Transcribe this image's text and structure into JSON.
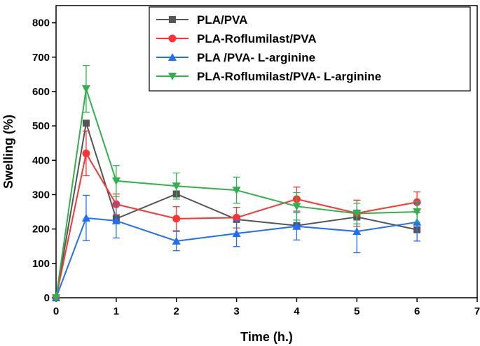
{
  "chart_data": {
    "type": "line",
    "title": "",
    "xlabel": "Time (h.)",
    "ylabel": "Swelling (%)",
    "xlim": [
      0,
      7
    ],
    "ylim": [
      0,
      850
    ],
    "xticks": [
      0,
      1,
      2,
      3,
      4,
      5,
      6,
      7
    ],
    "yticks": [
      0,
      100,
      200,
      300,
      400,
      500,
      600,
      700,
      800
    ],
    "xtick_labels": [
      "0",
      "1",
      "2",
      "3",
      "4",
      "5",
      "6",
      "7"
    ],
    "ytick_labels": [
      "0",
      "100",
      "200",
      "300",
      "400",
      "500",
      "600",
      "700",
      "800"
    ],
    "grid": false,
    "legend_position": "top-right",
    "x": [
      0,
      0.5,
      1,
      2,
      3,
      4,
      5,
      6
    ],
    "series": [
      {
        "name": "PLA/PVA",
        "color": "#555555",
        "marker": "square",
        "values": [
          0,
          508,
          230,
          302,
          228,
          210,
          235,
          198
        ],
        "errors": [
          0,
          0,
          0,
          0,
          0,
          0,
          0,
          0
        ]
      },
      {
        "name": "PLA-Roflumilast/PVA",
        "color": "#ff3333",
        "marker": "circle",
        "values": [
          0,
          420,
          272,
          230,
          233,
          287,
          246,
          278
        ],
        "errors": [
          0,
          65,
          30,
          35,
          30,
          35,
          38,
          30
        ]
      },
      {
        "name": "PLA /PVA- L-arginine",
        "color": "#1e6fff",
        "marker": "triangle-up",
        "values": [
          0,
          232,
          224,
          165,
          187,
          208,
          193,
          220
        ],
        "errors": [
          0,
          66,
          50,
          28,
          38,
          40,
          62,
          55
        ]
      },
      {
        "name": "PLA-Roflumilast/PVA- L-arginine",
        "color": "#2db34a",
        "marker": "triangle-down",
        "values": [
          0,
          608,
          340,
          325,
          313,
          266,
          245,
          250
        ],
        "errors": [
          0,
          68,
          45,
          38,
          38,
          40,
          30,
          30
        ]
      }
    ]
  }
}
